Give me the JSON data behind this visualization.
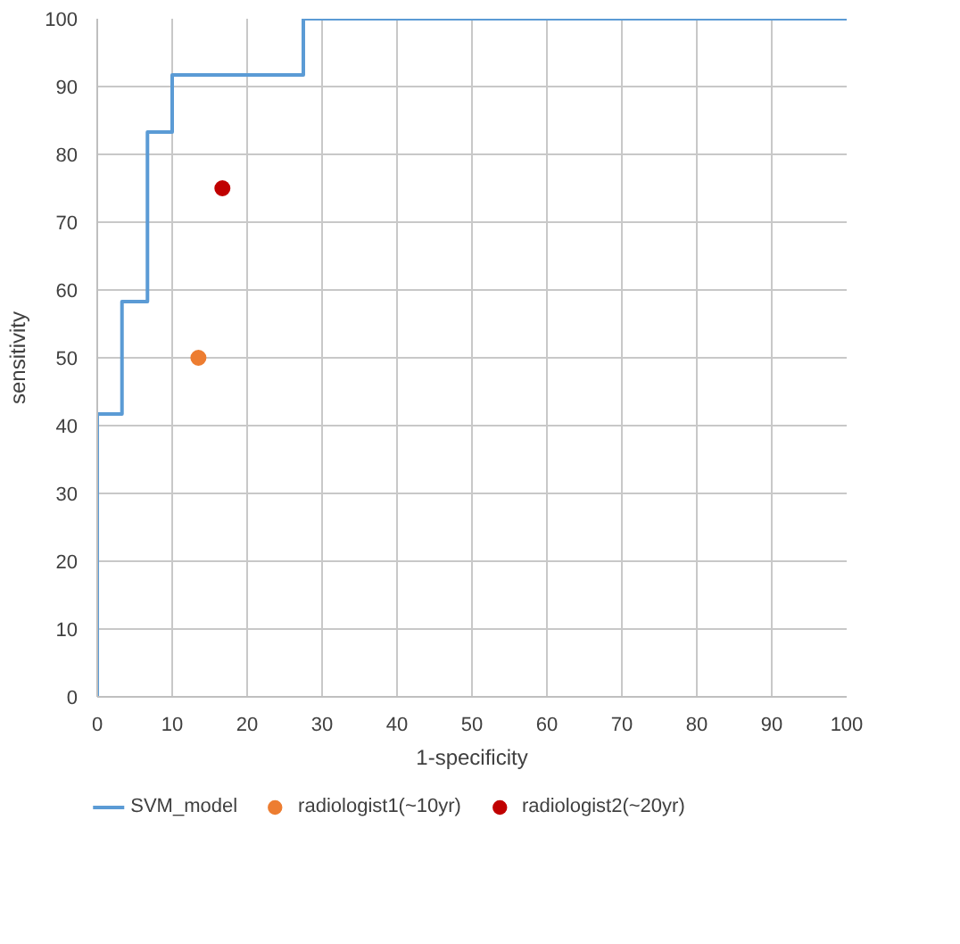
{
  "chart_data": {
    "type": "step",
    "xlabel": "1-specificity",
    "ylabel": "sensitivity",
    "xlim": [
      0,
      100
    ],
    "ylim": [
      0,
      100
    ],
    "xticks": [
      0,
      10,
      20,
      30,
      40,
      50,
      60,
      70,
      80,
      90,
      100
    ],
    "yticks": [
      0,
      10,
      20,
      30,
      40,
      50,
      60,
      70,
      80,
      90,
      100
    ],
    "grid": true,
    "legend": "bottom",
    "series": [
      {
        "name": "SVM_model",
        "color": "#5b9bd5",
        "x": [
          0,
          0,
          3.3,
          6.7,
          10,
          27.5,
          100
        ],
        "values": [
          0,
          41.7,
          58.3,
          83.3,
          91.7,
          100,
          100
        ]
      },
      {
        "name": "radiologist1(~10yr)",
        "type": "scatter",
        "color": "#ed7d31",
        "x": [
          13.5
        ],
        "values": [
          50
        ]
      },
      {
        "name": "radiologist2(~20yr)",
        "type": "scatter",
        "color": "#c00000",
        "x": [
          16.7
        ],
        "values": [
          75
        ]
      }
    ]
  }
}
